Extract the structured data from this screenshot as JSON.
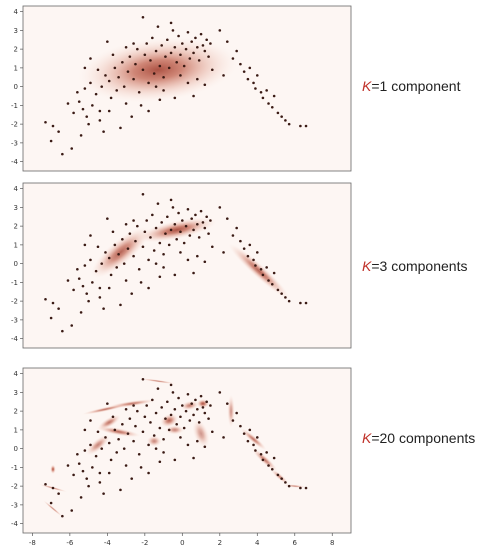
{
  "colors": {
    "density": "#a84a3b",
    "points": "#3a1a14",
    "axis": "#444444",
    "caption_k": "#c0332b"
  },
  "chart_data": [
    {
      "type": "scatter",
      "caption": {
        "k": "K",
        "rest": "=1 component"
      },
      "xlim": [
        -8.5,
        9
      ],
      "ylim": [
        -4.5,
        4.3
      ],
      "yticks": [
        -4,
        -3,
        -2,
        -1,
        0,
        1,
        2,
        3,
        4
      ],
      "grid": false,
      "density": [
        {
          "x": -1.3,
          "y": 0.9,
          "sx": 4.3,
          "sy": 1.7,
          "angle": 6,
          "weight": 1.0
        }
      ]
    },
    {
      "type": "scatter",
      "caption": {
        "k": "K",
        "rest": "=3 components"
      },
      "xlim": [
        -8.5,
        9
      ],
      "ylim": [
        -4.5,
        4.3
      ],
      "yticks": [
        -4,
        -3,
        -2,
        -1,
        0,
        1,
        2,
        3,
        4
      ],
      "grid": false,
      "density": [
        {
          "x": -3.3,
          "y": 0.6,
          "sx": 2.0,
          "sy": 0.65,
          "angle": 40,
          "weight": 0.9
        },
        {
          "x": -0.3,
          "y": 1.8,
          "sx": 2.2,
          "sy": 0.5,
          "angle": 12,
          "weight": 1.0
        },
        {
          "x": 4.1,
          "y": -0.4,
          "sx": 2.2,
          "sy": 0.35,
          "angle": -42,
          "weight": 0.9
        }
      ]
    },
    {
      "type": "scatter",
      "caption": {
        "k": "K",
        "rest": "=20 components"
      },
      "xlim": [
        -8.5,
        9
      ],
      "ylim": [
        -4.5,
        4.3
      ],
      "xticks": [
        -8,
        -6,
        -4,
        -2,
        0,
        2,
        4,
        6,
        8
      ],
      "yticks": [
        -4,
        -3,
        -2,
        -1,
        0,
        1,
        2,
        3,
        4
      ],
      "grid": false,
      "density": [
        {
          "x": 1.1,
          "y": 2.4,
          "sx": 0.35,
          "sy": 0.25,
          "angle": 0,
          "weight": 1.0
        },
        {
          "x": -0.7,
          "y": 1.5,
          "sx": 0.5,
          "sy": 0.35,
          "angle": 20,
          "weight": 0.9
        },
        {
          "x": -2.7,
          "y": 2.4,
          "sx": 1.3,
          "sy": 0.15,
          "angle": 8,
          "weight": 0.8
        },
        {
          "x": -4.1,
          "y": 2.1,
          "sx": 1.3,
          "sy": 0.12,
          "angle": 12,
          "weight": 0.8
        },
        {
          "x": -3.4,
          "y": 0.9,
          "sx": 1.2,
          "sy": 0.2,
          "angle": -10,
          "weight": 0.85
        },
        {
          "x": -3.9,
          "y": 1.4,
          "sx": 0.7,
          "sy": 0.25,
          "angle": 30,
          "weight": 0.8
        },
        {
          "x": -4.5,
          "y": 0.2,
          "sx": 0.8,
          "sy": 0.3,
          "angle": 40,
          "weight": 0.7
        },
        {
          "x": -1.5,
          "y": 0.4,
          "sx": 0.4,
          "sy": 0.3,
          "angle": 0,
          "weight": 0.7
        },
        {
          "x": -0.4,
          "y": 1.0,
          "sx": 0.5,
          "sy": 0.25,
          "angle": 0,
          "weight": 0.7
        },
        {
          "x": 0.4,
          "y": 2.3,
          "sx": 0.5,
          "sy": 0.25,
          "angle": 10,
          "weight": 0.75
        },
        {
          "x": 2.6,
          "y": 2.0,
          "sx": 0.2,
          "sy": 0.9,
          "angle": 0,
          "weight": 0.6
        },
        {
          "x": 3.8,
          "y": 0.5,
          "sx": 0.9,
          "sy": 0.18,
          "angle": -40,
          "weight": 0.8
        },
        {
          "x": 4.4,
          "y": -0.6,
          "sx": 0.9,
          "sy": 0.2,
          "angle": -42,
          "weight": 0.8
        },
        {
          "x": 5.2,
          "y": -1.5,
          "sx": 0.6,
          "sy": 0.15,
          "angle": -40,
          "weight": 0.7
        },
        {
          "x": 6.0,
          "y": -2.0,
          "sx": 0.6,
          "sy": 0.08,
          "angle": -5,
          "weight": 0.7
        },
        {
          "x": -1.3,
          "y": 3.6,
          "sx": 1.0,
          "sy": 0.07,
          "angle": -8,
          "weight": 0.7
        },
        {
          "x": -6.9,
          "y": -2.1,
          "sx": 0.8,
          "sy": 0.07,
          "angle": -15,
          "weight": 0.7
        },
        {
          "x": -6.9,
          "y": -3.2,
          "sx": 0.7,
          "sy": 0.07,
          "angle": -40,
          "weight": 0.7
        },
        {
          "x": -6.9,
          "y": -1.1,
          "sx": 0.15,
          "sy": 0.25,
          "angle": 0,
          "weight": 1.0
        },
        {
          "x": 1.0,
          "y": 0.8,
          "sx": 0.4,
          "sy": 0.8,
          "angle": 20,
          "weight": 0.6
        }
      ]
    }
  ],
  "points": [
    [
      -7.3,
      -1.9
    ],
    [
      -6.9,
      -2.1
    ],
    [
      -6.6,
      -2.4
    ],
    [
      -7.0,
      -2.9
    ],
    [
      -6.4,
      -3.6
    ],
    [
      -5.9,
      -3.3
    ],
    [
      -5.8,
      -1.4
    ],
    [
      -5.5,
      -0.8
    ],
    [
      -5.3,
      -1.2
    ],
    [
      -5.6,
      -0.3
    ],
    [
      -5.2,
      -0.1
    ],
    [
      -4.9,
      0.2
    ],
    [
      -5.1,
      -1.6
    ],
    [
      -4.8,
      -1.0
    ],
    [
      -4.6,
      -0.4
    ],
    [
      -4.4,
      -1.3
    ],
    [
      -4.3,
      0.0
    ],
    [
      -4.1,
      0.6
    ],
    [
      -4.5,
      0.9
    ],
    [
      -3.9,
      0.3
    ],
    [
      -3.8,
      -0.6
    ],
    [
      -3.6,
      1.0
    ],
    [
      -3.4,
      0.5
    ],
    [
      -3.5,
      -0.2
    ],
    [
      -3.2,
      1.3
    ],
    [
      -3.1,
      0.0
    ],
    [
      -2.9,
      0.8
    ],
    [
      -2.8,
      1.6
    ],
    [
      -2.6,
      0.4
    ],
    [
      -2.5,
      1.2
    ],
    [
      -2.4,
      2.0
    ],
    [
      -2.3,
      -0.3
    ],
    [
      -2.1,
      0.9
    ],
    [
      -2.0,
      1.7
    ],
    [
      -1.9,
      2.3
    ],
    [
      -1.8,
      0.2
    ],
    [
      -1.7,
      1.4
    ],
    [
      -1.6,
      2.6
    ],
    [
      -1.5,
      0.7
    ],
    [
      -1.4,
      1.9
    ],
    [
      -1.3,
      3.2
    ],
    [
      -1.2,
      1.1
    ],
    [
      -1.1,
      2.2
    ],
    [
      -1.0,
      0.5
    ],
    [
      -0.9,
      1.6
    ],
    [
      -0.8,
      2.5
    ],
    [
      -0.7,
      1.0
    ],
    [
      -0.6,
      1.8
    ],
    [
      -0.5,
      3.0
    ],
    [
      -0.4,
      2.1
    ],
    [
      -0.3,
      1.3
    ],
    [
      -0.2,
      2.7
    ],
    [
      -0.1,
      1.7
    ],
    [
      0.0,
      2.3
    ],
    [
      0.1,
      1.1
    ],
    [
      0.2,
      2.0
    ],
    [
      0.3,
      2.9
    ],
    [
      0.4,
      1.5
    ],
    [
      0.5,
      2.4
    ],
    [
      0.6,
      1.8
    ],
    [
      0.7,
      2.6
    ],
    [
      0.8,
      2.1
    ],
    [
      0.9,
      1.4
    ],
    [
      1.0,
      2.8
    ],
    [
      1.1,
      2.2
    ],
    [
      1.2,
      1.9
    ],
    [
      1.3,
      2.5
    ],
    [
      1.4,
      1.6
    ],
    [
      1.5,
      2.3
    ],
    [
      0.8,
      0.4
    ],
    [
      1.6,
      0.9
    ],
    [
      2.0,
      3.0
    ],
    [
      2.4,
      2.4
    ],
    [
      2.7,
      1.5
    ],
    [
      2.9,
      1.9
    ],
    [
      3.1,
      1.2
    ],
    [
      3.3,
      0.8
    ],
    [
      3.5,
      0.4
    ],
    [
      3.6,
      1.0
    ],
    [
      3.8,
      0.2
    ],
    [
      3.9,
      -0.1
    ],
    [
      4.0,
      0.6
    ],
    [
      4.2,
      -0.3
    ],
    [
      4.3,
      -0.6
    ],
    [
      4.5,
      -0.2
    ],
    [
      4.6,
      -0.9
    ],
    [
      4.8,
      -1.1
    ],
    [
      4.9,
      -0.5
    ],
    [
      5.1,
      -1.4
    ],
    [
      5.3,
      -1.6
    ],
    [
      5.5,
      -1.8
    ],
    [
      5.7,
      -2.0
    ],
    [
      6.3,
      -2.1
    ],
    [
      6.6,
      -2.1
    ],
    [
      -2.1,
      3.7
    ],
    [
      -0.6,
      3.4
    ],
    [
      -1.8,
      -1.3
    ],
    [
      -3.3,
      -2.2
    ],
    [
      -4.2,
      -2.4
    ],
    [
      -5.0,
      -2.0
    ],
    [
      -3.7,
      1.7
    ],
    [
      -4.9,
      1.5
    ],
    [
      -2.6,
      2.3
    ],
    [
      -3.0,
      2.1
    ],
    [
      -4.4,
      -1.8
    ],
    [
      -5.4,
      -2.6
    ],
    [
      -3.9,
      -1.3
    ],
    [
      -2.2,
      -1.0
    ],
    [
      -1.0,
      -0.2
    ],
    [
      0.3,
      0.2
    ],
    [
      -0.4,
      -0.6
    ],
    [
      -2.7,
      -1.6
    ],
    [
      -1.2,
      -0.7
    ],
    [
      -3.0,
      -0.9
    ],
    [
      -6.1,
      -0.9
    ],
    [
      -4.0,
      2.4
    ],
    [
      -5.2,
      1.0
    ],
    [
      1.2,
      0.1
    ],
    [
      0.6,
      -0.5
    ],
    [
      2.2,
      0.6
    ],
    [
      -1.4,
      0.0
    ],
    [
      -0.1,
      0.6
    ]
  ]
}
